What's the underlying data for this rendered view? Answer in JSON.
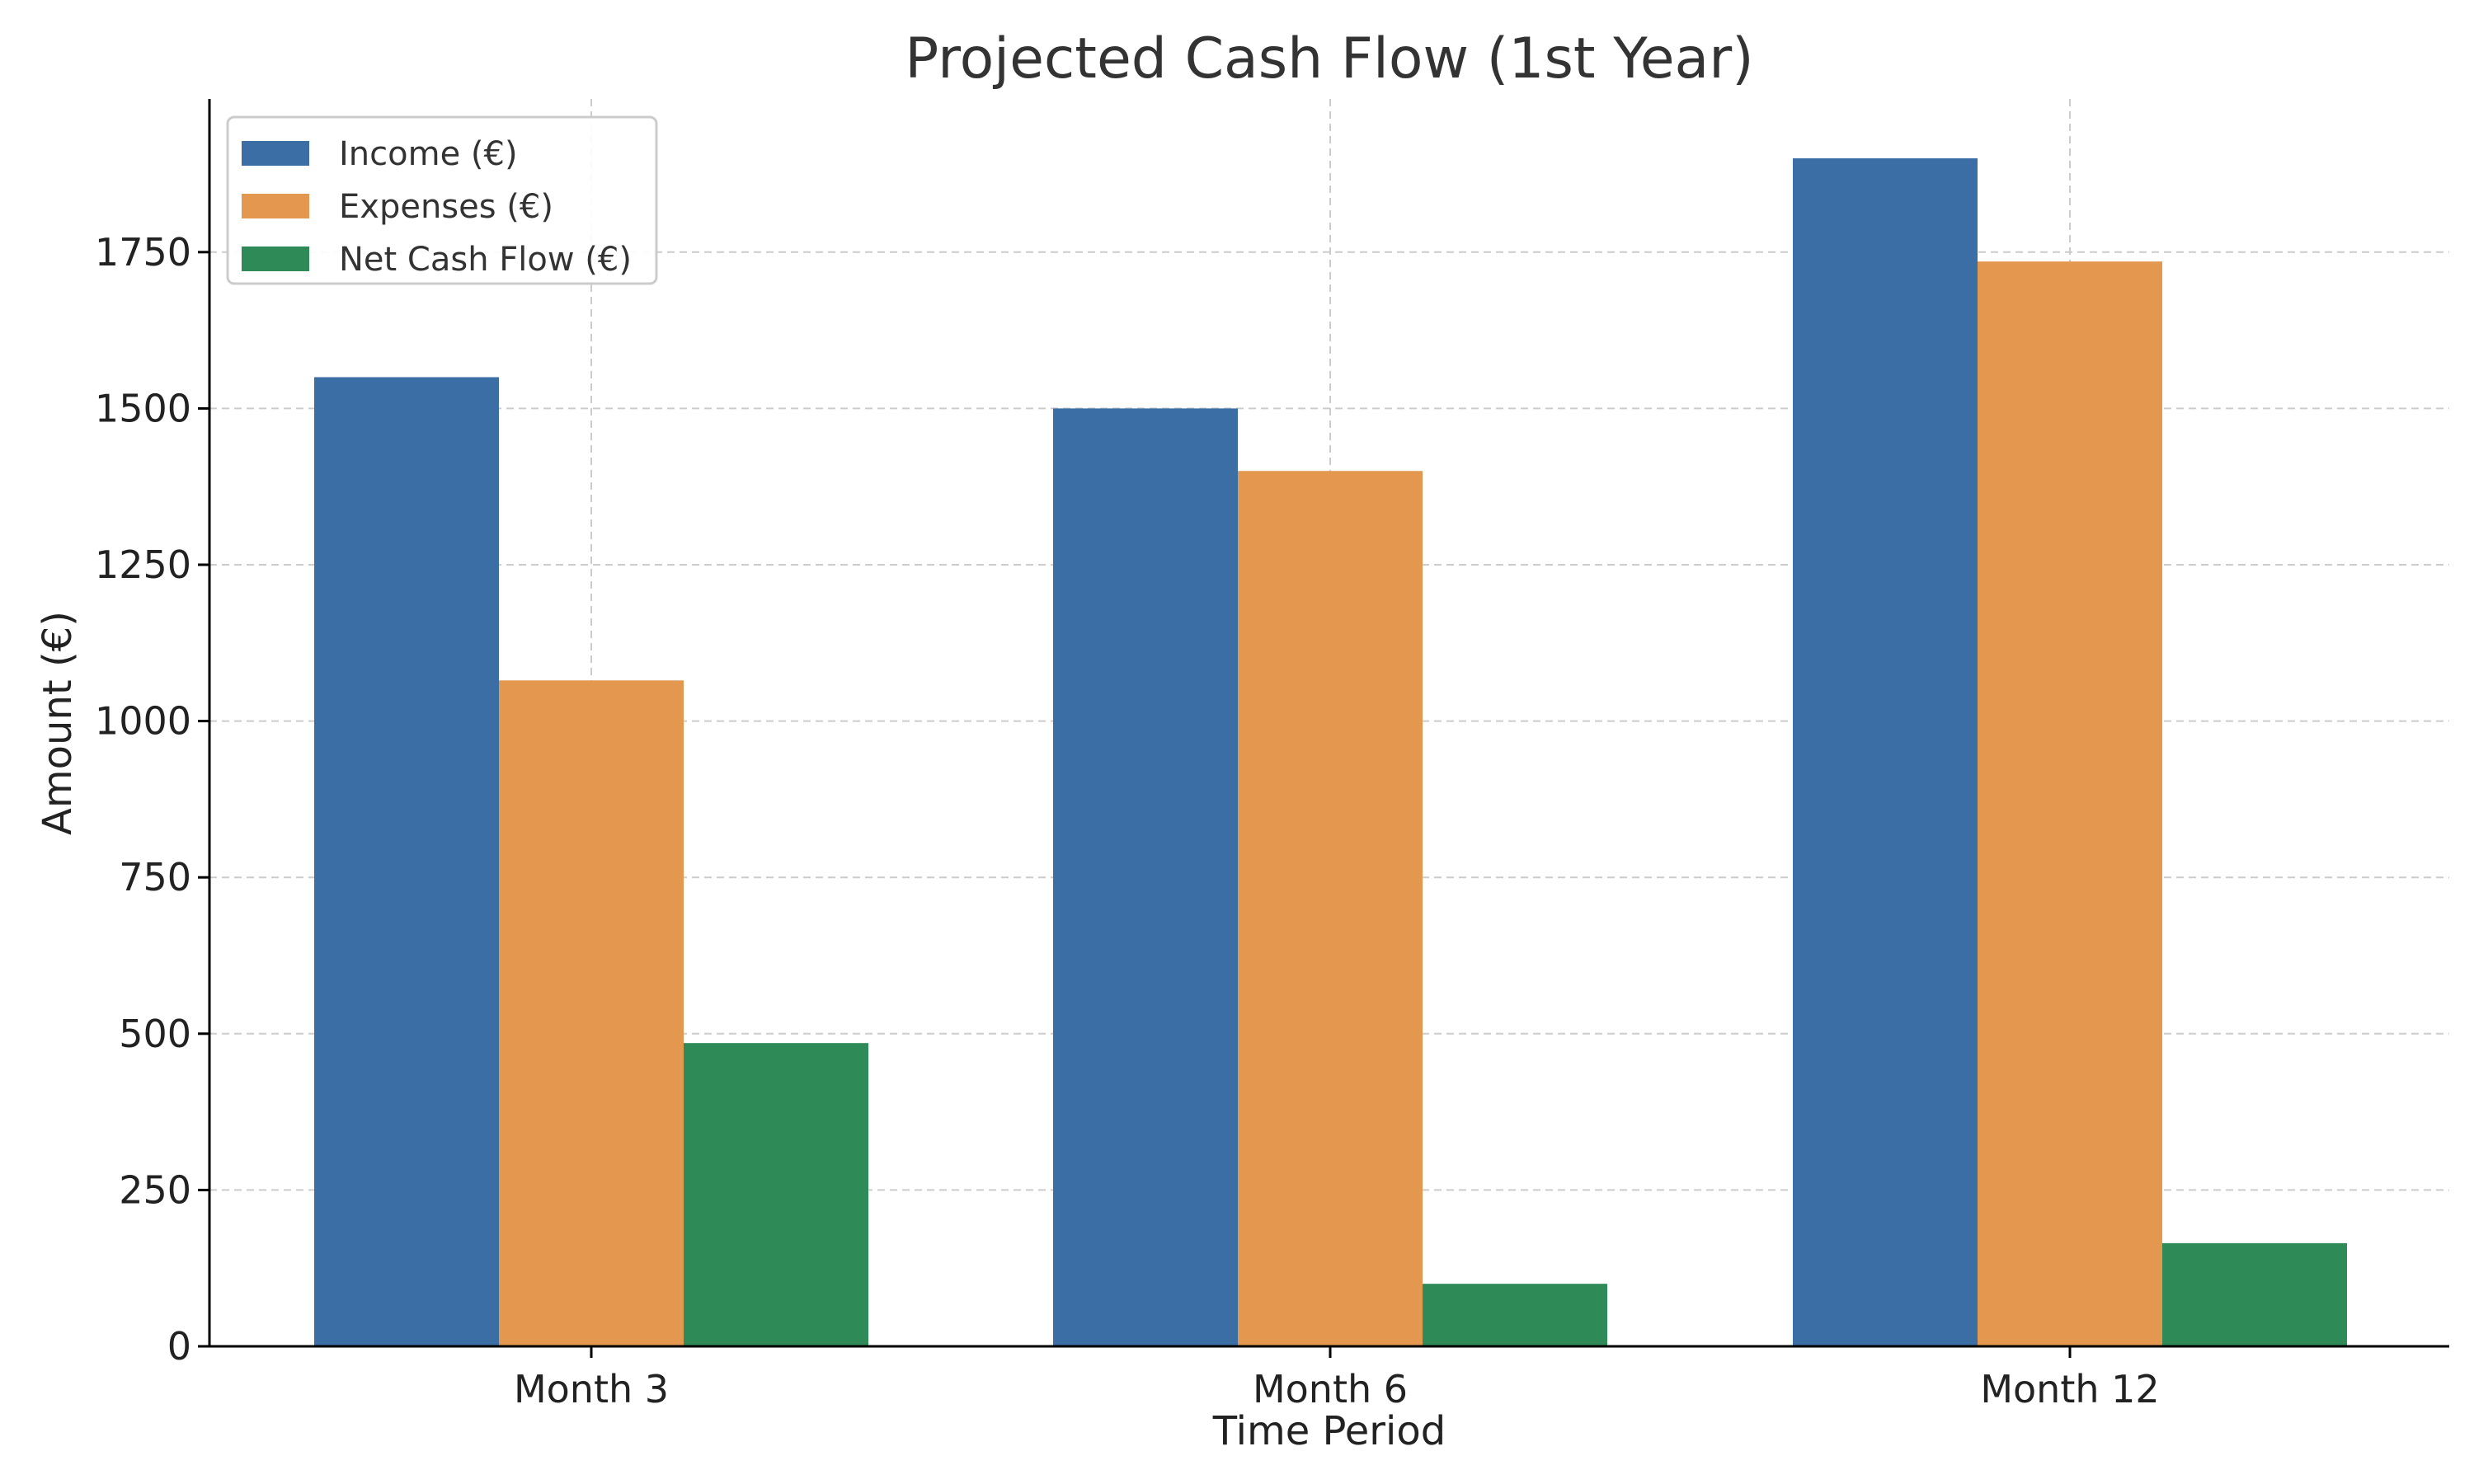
{
  "chart_data": {
    "type": "bar",
    "title": "Projected Cash Flow (1st Year)",
    "xlabel": "Time Period",
    "ylabel": "Amount (€)",
    "categories": [
      "Month 3",
      "Month 6",
      "Month 12"
    ],
    "series": [
      {
        "name": "Income (€)",
        "values": [
          1550,
          1500,
          1900
        ],
        "color": "#3a6ea5"
      },
      {
        "name": "Expenses (€)",
        "values": [
          1065,
          1400,
          1735
        ],
        "color": "#e4974f"
      },
      {
        "name": "Net Cash Flow (€)",
        "values": [
          485,
          100,
          165
        ],
        "color": "#2e8b57"
      }
    ],
    "ylim": [
      0,
      1995
    ],
    "yticks": [
      0,
      250,
      500,
      750,
      1000,
      1250,
      1500,
      1750
    ],
    "grid": true,
    "legend_position": "top-left"
  }
}
